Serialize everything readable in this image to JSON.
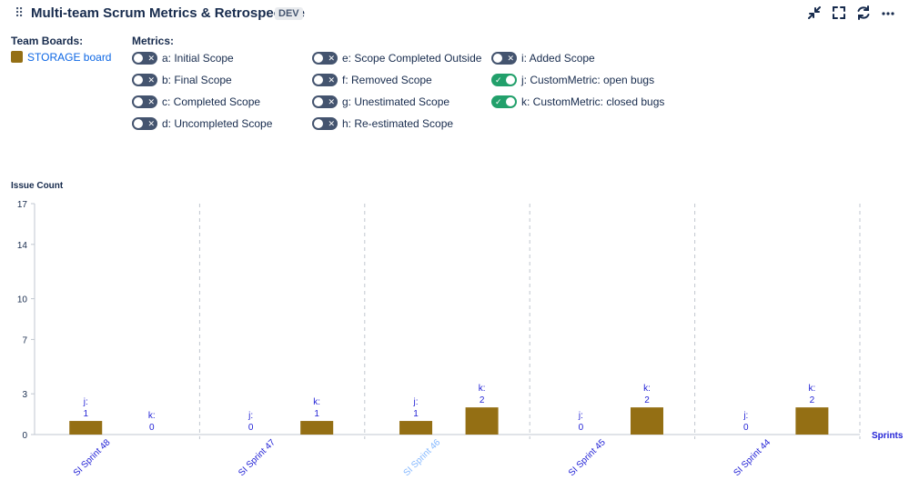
{
  "header": {
    "title": "Multi-team Scrum Metrics & Retrospective",
    "tag": "DEV",
    "icons": [
      "collapse-icon",
      "fullscreen-icon",
      "refresh-icon",
      "more-icon"
    ]
  },
  "boards": {
    "label": "Team Boards:",
    "items": [
      {
        "name": "STORAGE board",
        "color": "#946f14"
      }
    ]
  },
  "metrics": {
    "label": "Metrics:",
    "items": [
      {
        "label": "a: Initial Scope",
        "on": false
      },
      {
        "label": "b: Final Scope",
        "on": false
      },
      {
        "label": "c: Completed Scope",
        "on": false
      },
      {
        "label": "d: Uncompleted Scope",
        "on": false
      },
      {
        "label": "e: Scope Completed Outside",
        "on": false
      },
      {
        "label": "f: Removed Scope",
        "on": false
      },
      {
        "label": "g: Unestimated Scope",
        "on": false
      },
      {
        "label": "h: Re-estimated Scope",
        "on": false
      },
      {
        "label": "i: Added Scope",
        "on": false
      },
      {
        "label": "j: CustomMetric: open bugs",
        "on": true
      },
      {
        "label": "k: CustomMetric: closed bugs",
        "on": true
      }
    ]
  },
  "chart_data": {
    "type": "bar",
    "ylabel": "Issue Count",
    "xlabel": "Sprints",
    "ylim": [
      0,
      17
    ],
    "yticks": [
      0,
      3,
      7,
      10,
      14,
      17
    ],
    "categories": [
      "SI Sprint 48",
      "SI Sprint 47",
      "SI Sprint 46",
      "SI Sprint 45",
      "SI Sprint 44"
    ],
    "highlighted_category": "SI Sprint 46",
    "bar_color": "#946f14",
    "label_color": "#2323d6",
    "series": [
      {
        "prefix": "j:",
        "values": [
          1,
          0,
          1,
          0,
          0
        ]
      },
      {
        "prefix": "k:",
        "values": [
          0,
          1,
          2,
          2,
          2
        ]
      }
    ]
  }
}
